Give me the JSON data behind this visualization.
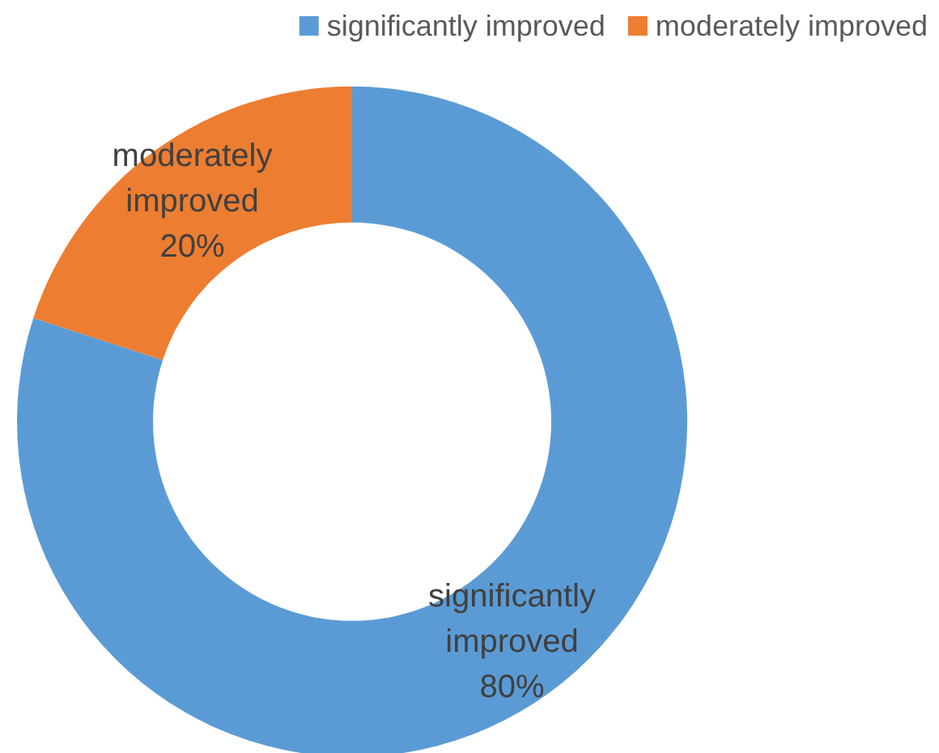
{
  "chart_data": {
    "type": "donut",
    "categories": [
      "significantly improved",
      "moderately improved"
    ],
    "values": [
      80,
      20
    ],
    "value_labels": [
      "80%",
      "20%"
    ],
    "colors": [
      "#5b9bd5",
      "#ed7d31"
    ],
    "legend": "top right"
  }
}
